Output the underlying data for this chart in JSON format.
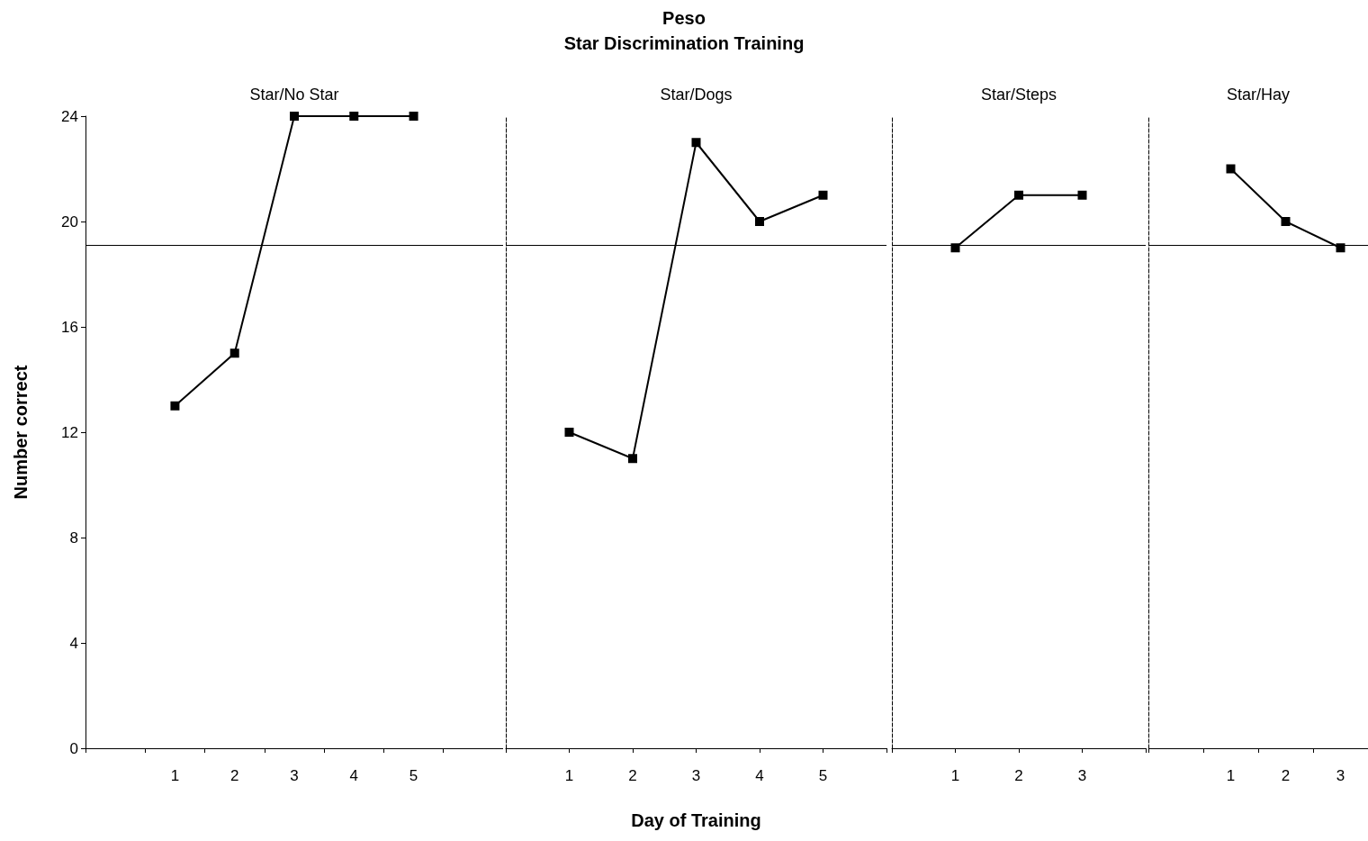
{
  "chart_data": [
    {
      "type": "line",
      "ylabel": "Number correct",
      "categories": [
        null,
        "1",
        "2",
        "3",
        "4",
        "5",
        null
      ],
      "values": [
        null,
        13,
        15,
        24,
        24,
        24,
        null
      ],
      "color": "#000000",
      "marker": "square",
      "line_style": "solid",
      "ylim": [
        0,
        24
      ],
      "yticks": [
        0,
        4,
        8,
        12,
        16,
        20,
        24
      ],
      "ref_lines": [
        {
          "axis": "y",
          "value": 19.1,
          "color": "#000000",
          "line_style": "solid"
        }
      ],
      "annotations": [
        "Star/No Star"
      ]
    },
    {
      "type": "line",
      "title": "Peso",
      "subtitle": "Star Discrimination Training",
      "xlabel": "Day of Training",
      "categories": [
        null,
        "1",
        "2",
        "3",
        "4",
        "5",
        null
      ],
      "values": [
        null,
        12,
        11,
        23,
        20,
        21,
        null
      ],
      "color": "#000000",
      "marker": "square",
      "line_style": "solid",
      "ylim": [
        0,
        24
      ],
      "yticks": [
        0,
        4,
        8,
        12,
        16,
        20,
        24
      ],
      "tick_labels": "x",
      "ref_lines": [
        {
          "axis": "y",
          "value": 19.1,
          "color": "#000000",
          "line_style": "solid"
        }
      ],
      "annotations": [
        "Star/Dogs"
      ]
    },
    {
      "type": "line",
      "categories": [
        null,
        "1",
        "2",
        "3",
        null
      ],
      "values": [
        null,
        19,
        21,
        21,
        null
      ],
      "color": "#000000",
      "marker": "square",
      "line_style": "solid",
      "ylim": [
        0,
        24
      ],
      "yticks": [
        0,
        4,
        8,
        12,
        16,
        20,
        24
      ],
      "tick_labels": "x",
      "ref_lines": [
        {
          "axis": "y",
          "value": 19.1,
          "color": "#000000",
          "line_style": "solid"
        }
      ],
      "annotations": [
        "Star/Steps"
      ]
    },
    {
      "type": "line",
      "categories": [
        null,
        "1",
        "2",
        "3"
      ],
      "values": [
        null,
        22,
        20,
        19
      ],
      "color": "#000000",
      "marker": "square",
      "line_style": "solid",
      "ylim": [
        0,
        24
      ],
      "yticks": [
        0,
        4,
        8,
        12,
        16,
        20,
        24
      ],
      "tick_labels": "x",
      "ref_lines": [
        {
          "axis": "y",
          "value": 19.1,
          "color": "#000000",
          "line_style": "solid"
        }
      ],
      "annotations": [
        "Star/Hay"
      ]
    }
  ]
}
